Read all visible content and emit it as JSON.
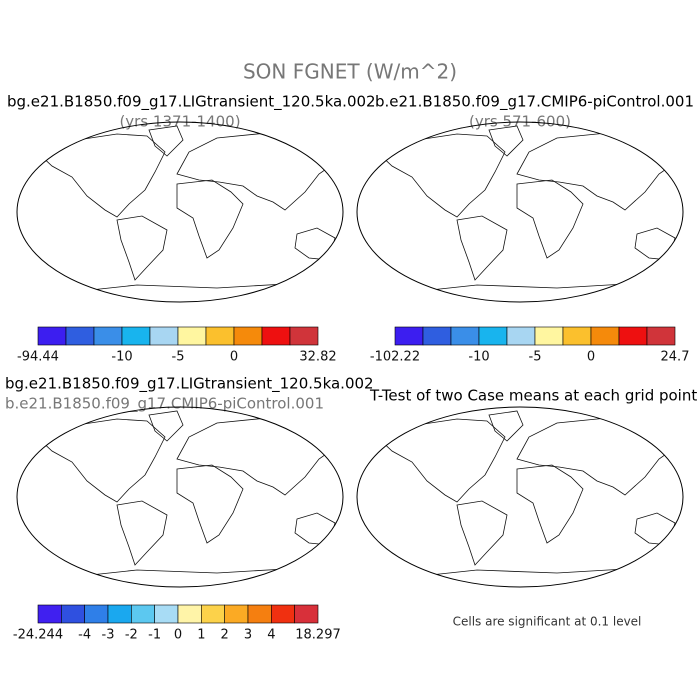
{
  "title": "SON FGNET (W/m^2)",
  "panels": [
    {
      "title": "bg.e21.B1850.f09_g17.LIGtransient_120.5ka.002",
      "subtitle": "(yrs 1371-1400)",
      "colorbar": {
        "colors": [
          "#3c1ef0",
          "#2f5ee0",
          "#3a8ee8",
          "#18b4ee",
          "#a8d6f2",
          "#fff6a0",
          "#fbc02d",
          "#f58a0b",
          "#ee1010",
          "#d0343a"
        ],
        "labels": [
          "-94.44",
          "-10",
          "-5",
          "0",
          "32.82"
        ]
      }
    },
    {
      "title": "b.e21.B1850.f09_g17.CMIP6-piControl.001",
      "subtitle": "(yrs 571-600)",
      "colorbar": {
        "colors": [
          "#3c1ef0",
          "#2f5ee0",
          "#3a8ee8",
          "#18b4ee",
          "#a8d6f2",
          "#fff6a0",
          "#fbc02d",
          "#f58a0b",
          "#ee1010",
          "#d0343a"
        ],
        "labels": [
          "-102.22",
          "-10",
          "-5",
          "0",
          "24.7"
        ]
      }
    },
    {
      "title": "bg.e21.B1850.f09_g17.LIGtransient_120.5ka.002",
      "subtitle": "b.e21.B1850.f09_g17.CMIP6-piControl.001",
      "colorbar": {
        "colors": [
          "#4020f0",
          "#2f50e0",
          "#2f7fe8",
          "#1aa8ef",
          "#5cc8f0",
          "#a8dcf5",
          "#fff4a8",
          "#fcd24a",
          "#fbaa24",
          "#f57f10",
          "#f03010",
          "#d8303a"
        ],
        "labels": [
          "-24.244",
          "-4",
          "-3",
          "-2",
          "-1",
          "0",
          "1",
          "2",
          "3",
          "4",
          "18.297"
        ]
      }
    },
    {
      "title": "T-Test of two Case means at each grid point",
      "note": "Cells are significant at 0.1 level"
    }
  ]
}
